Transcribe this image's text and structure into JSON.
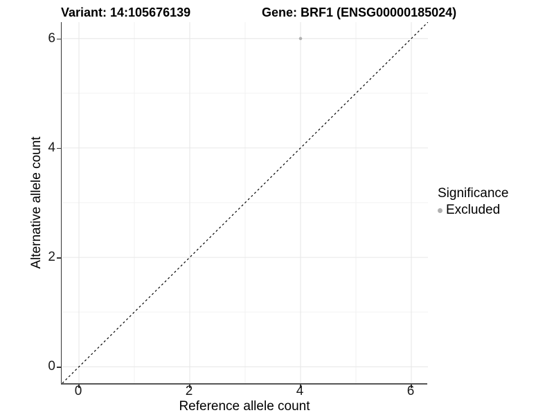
{
  "header": {
    "variant_title": "Variant: 14:105676139",
    "gene_title": "Gene: BRF1 (ENSG00000185024)"
  },
  "axes": {
    "x_label": "Reference allele count",
    "y_label": "Alternative allele count"
  },
  "legend": {
    "title": "Significance",
    "items": [
      {
        "label": "Excluded",
        "marker": "circle",
        "color": "#b0b0b0"
      }
    ]
  },
  "chart_data": {
    "type": "scatter",
    "title": "Variant: 14:105676139   Gene: BRF1 (ENSG00000185024)",
    "xlabel": "Reference allele count",
    "ylabel": "Alternative allele count",
    "xlim": [
      -0.3,
      6.3
    ],
    "ylim": [
      -0.3,
      6.3
    ],
    "x_ticks": [
      0,
      2,
      4,
      6
    ],
    "y_ticks": [
      0,
      2,
      4,
      6
    ],
    "x_minor_ticks": [
      1,
      3,
      5
    ],
    "y_minor_ticks": [
      1,
      3,
      5
    ],
    "grid": "on",
    "legend_position": "right",
    "series": [
      {
        "name": "Excluded",
        "color": "#b0b0b0",
        "point_radius": 2.3,
        "points": [
          {
            "x": 4,
            "y": 6
          }
        ]
      }
    ],
    "reference_line": {
      "kind": "identity",
      "slope": 1,
      "intercept": 0,
      "style": "dashed",
      "color": "#000000"
    },
    "colors": {
      "background": "#ffffff",
      "major_grid": "#e6e6e6",
      "minor_grid": "#f2f2f2",
      "axis_line_left": "#333333",
      "axis_line_bottom": "#555555",
      "tick_mark": "#333333",
      "tick_text": "#1a1a1a"
    }
  }
}
